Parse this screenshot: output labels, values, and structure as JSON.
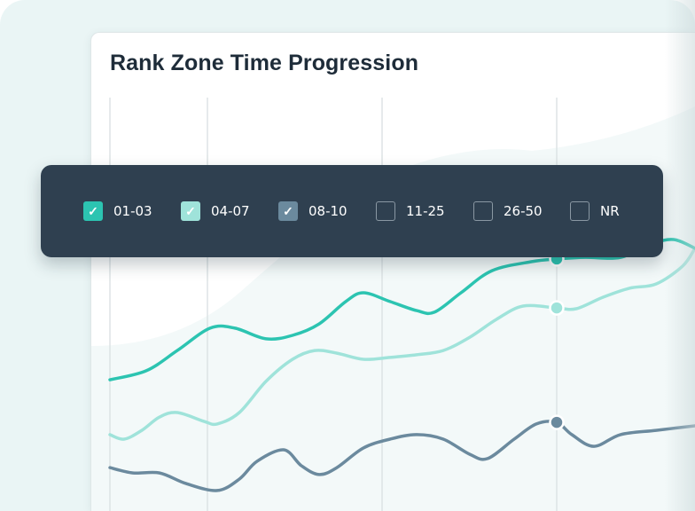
{
  "title": "Rank Zone Time Progression",
  "legend": [
    {
      "label": "01-03",
      "checked": true,
      "color": "#2cc4b1"
    },
    {
      "label": "04-07",
      "checked": true,
      "color": "#9fe3da"
    },
    {
      "label": "08-10",
      "checked": true,
      "color": "#6b8a9e"
    },
    {
      "label": "11-25",
      "checked": false
    },
    {
      "label": "26-50",
      "checked": false
    },
    {
      "label": "NR",
      "checked": false
    }
  ],
  "chart_data": {
    "type": "line",
    "grid": "vertical",
    "highlight_x": 50.4,
    "series": [
      {
        "name": "01-03",
        "color": "#2cc4b1",
        "x": [
          0,
          4.1,
          7.6,
          11.3,
          14.1,
          17.6,
          20.6,
          23.6,
          26.6,
          28.6,
          31.6,
          34.6,
          36.6,
          39.6,
          43.1,
          47.6,
          50.4,
          53.6,
          57.6,
          61.1,
          63.6,
          66
        ],
        "y": [
          49.3,
          52.7,
          60.3,
          68.7,
          68.7,
          64.7,
          66,
          70.3,
          78.7,
          82,
          78.7,
          75.3,
          74.7,
          82,
          90.3,
          93.7,
          94.7,
          95.3,
          95.3,
          100.3,
          102,
          98.7
        ]
      },
      {
        "name": "04-07",
        "color": "#9fe3da",
        "x": [
          0,
          1.6,
          3.6,
          5.6,
          7.6,
          10.6,
          12.1,
          14.6,
          17.6,
          20.6,
          23.1,
          25.6,
          28.6,
          31.6,
          34.6,
          37.6,
          40.6,
          43.6,
          46.6,
          50.4,
          52.6,
          55.6,
          58.6,
          61.6,
          64.6,
          66
        ],
        "y": [
          28.7,
          27,
          30.3,
          35.3,
          37,
          33.7,
          32.7,
          37,
          48.7,
          57,
          60.3,
          59.3,
          57,
          57.7,
          58.7,
          60.3,
          65.3,
          72,
          77,
          76.3,
          76,
          80.3,
          83.7,
          85.3,
          92,
          98.7
        ]
      },
      {
        "name": "08-10",
        "color": "#6b8a9e",
        "x": [
          0,
          2.6,
          5.6,
          8.6,
          12.1,
          14.6,
          16.6,
          19.6,
          21.6,
          23.6,
          25.6,
          28.6,
          31.6,
          34.6,
          37.6,
          40.6,
          42.6,
          45.6,
          48.1,
          50.4,
          52.1,
          54.6,
          57.6,
          61.6,
          66
        ],
        "y": [
          16.3,
          14.3,
          14.3,
          10.3,
          7.7,
          12,
          18.7,
          23,
          17,
          13.7,
          16.3,
          23.7,
          27,
          28.7,
          27,
          21.3,
          19.7,
          27,
          32.7,
          33.3,
          28.7,
          24.3,
          28.7,
          30.3,
          32
        ]
      }
    ]
  }
}
